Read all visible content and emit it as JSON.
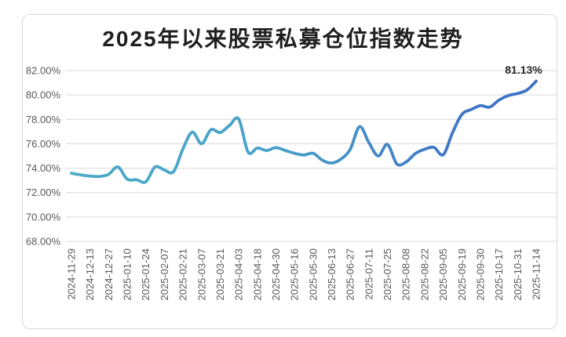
{
  "title": "2025年以来股票私募仓位指数走势",
  "annotation": {
    "last_value_label": "81.13%"
  },
  "colors": {
    "line_gradient_start": "#4BACC6",
    "line_gradient_mid": "#48A0CA",
    "line_gradient_late": "#4178C6",
    "line_gradient_end": "#3F72C6",
    "gridline": "#D9D9D9",
    "axis_text": "#595959",
    "title_text": "#1F1F1F",
    "annotation_text": "#262626",
    "frame_border": "#D9D9D9"
  },
  "y_axis": {
    "tick_labels": [
      "82.00%",
      "80.00%",
      "78.00%",
      "76.00%",
      "74.00%",
      "72.00%",
      "70.00%",
      "68.00%"
    ],
    "min": 68,
    "max": 82,
    "step": 2
  },
  "x_axis": {
    "tick_labels": [
      "2024-11-29",
      "2024-12-13",
      "2024-12-27",
      "2025-01-10",
      "2025-01-24",
      "2025-02-07",
      "2025-02-21",
      "2025-03-07",
      "2025-03-21",
      "2025-04-03",
      "2025-04-18",
      "2025-04-30",
      "2025-05-16",
      "2025-05-30",
      "2025-06-13",
      "2025-06-27",
      "2025-07-11",
      "2025-07-25",
      "2025-08-08",
      "2025-08-22",
      "2025-09-05",
      "2025-09-19",
      "2025-09-30",
      "2025-10-17",
      "2025-10-31",
      "2025-11-14"
    ],
    "label_every_n_points": 2
  },
  "chart_data": {
    "type": "line",
    "title": "2025年以来股票私募仓位指数走势",
    "x": [
      "2024-11-29",
      "2024-12-06",
      "2024-12-13",
      "2024-12-20",
      "2024-12-27",
      "2025-01-03",
      "2025-01-10",
      "2025-01-17",
      "2025-01-24",
      "2025-01-27",
      "2025-02-07",
      "2025-02-14",
      "2025-02-21",
      "2025-02-28",
      "2025-03-07",
      "2025-03-14",
      "2025-03-21",
      "2025-03-28",
      "2025-04-03",
      "2025-04-11",
      "2025-04-18",
      "2025-04-25",
      "2025-04-30",
      "2025-05-09",
      "2025-05-16",
      "2025-05-23",
      "2025-05-30",
      "2025-06-06",
      "2025-06-13",
      "2025-06-20",
      "2025-06-27",
      "2025-07-04",
      "2025-07-11",
      "2025-07-18",
      "2025-07-25",
      "2025-08-01",
      "2025-08-08",
      "2025-08-15",
      "2025-08-22",
      "2025-08-29",
      "2025-09-05",
      "2025-09-12",
      "2025-09-19",
      "2025-09-26",
      "2025-09-30",
      "2025-10-10",
      "2025-10-17",
      "2025-10-24",
      "2025-10-31",
      "2025-11-07",
      "2025-11-14"
    ],
    "values": [
      73.58,
      73.45,
      73.35,
      73.32,
      73.5,
      74.1,
      73.1,
      73.05,
      72.88,
      74.1,
      73.85,
      73.72,
      75.6,
      76.95,
      76.0,
      77.15,
      76.92,
      77.5,
      78.02,
      75.32,
      75.65,
      75.45,
      75.68,
      75.45,
      75.22,
      75.08,
      75.22,
      74.65,
      74.42,
      74.75,
      75.55,
      77.4,
      76.1,
      75.0,
      75.95,
      74.35,
      74.5,
      75.2,
      75.55,
      75.7,
      75.1,
      76.9,
      78.4,
      78.8,
      79.12,
      79.0,
      79.58,
      79.95,
      80.12,
      80.4,
      81.13
    ],
    "last_point_annotation": "81.13%",
    "ylim": [
      68,
      82
    ],
    "y_tick_format": "percent_2dp",
    "x_tick_labels_shown": "every 2nd point",
    "grid": "horizontal",
    "legend": "none",
    "line_style": "smooth, gradient teal-to-blue"
  }
}
